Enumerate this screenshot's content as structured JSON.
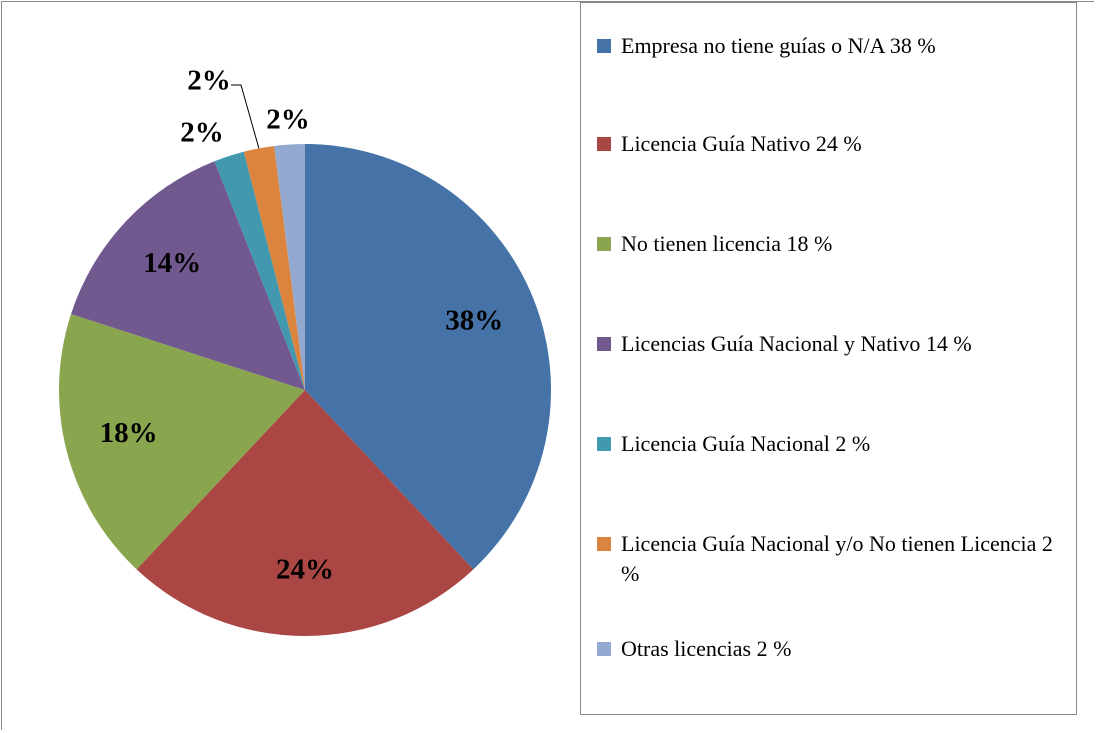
{
  "chart_data": {
    "type": "pie",
    "categories": [
      "Empresa no tiene guías o N/A 38 %",
      "Licencia Guía Nativo 24 %",
      "No tienen licencia 18 %",
      "Licencias Guía Nacional y Nativo 14 %",
      "Licencia Guía Nacional 2 %",
      "Licencia Guía Nacional y/o No tienen Licencia 2 %",
      "Otras licencias 2 %"
    ],
    "values": [
      38,
      24,
      18,
      14,
      2,
      2,
      2
    ],
    "value_labels": [
      "38%",
      "24%",
      "18%",
      "14%",
      "2%",
      "2%",
      "2%"
    ],
    "colors": [
      "#4572a7",
      "#aa4643",
      "#89a54e",
      "#71588f",
      "#4198af",
      "#db843d",
      "#93a9cf"
    ],
    "legend": "right"
  }
}
